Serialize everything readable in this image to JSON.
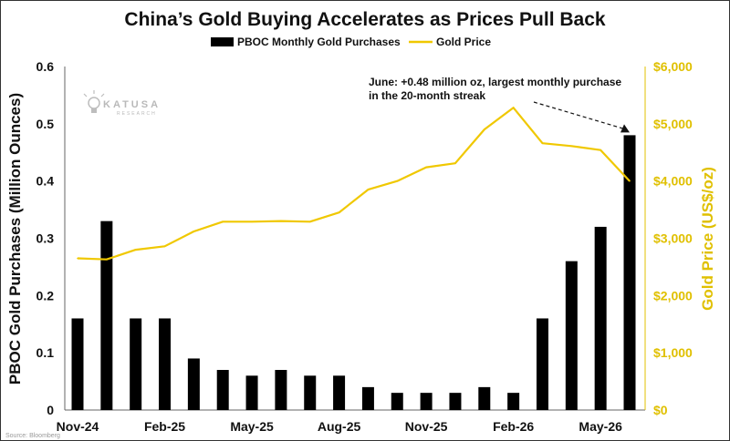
{
  "chart_data": {
    "type": "bar+line",
    "title": "China’s Gold Buying Accelerates as Prices Pull Back",
    "legend": [
      "PBOC Monthly Gold Purchases",
      "Gold Price"
    ],
    "legend_position": "top-center",
    "ylabel_left": "PBOC Gold Purchases (Million Ounces)",
    "ylabel_right": "Gold Price (US$/oz)",
    "ylim_left": [
      0,
      0.6
    ],
    "ylim_right": [
      0,
      6000
    ],
    "yticks_left": [
      "0",
      "0.1",
      "0.2",
      "0.3",
      "0.4",
      "0.5",
      "0.6"
    ],
    "yticks_right": [
      "$0",
      "$1,000",
      "$2,000",
      "$3,000",
      "$4,000",
      "$5,000",
      "$6,000"
    ],
    "x_tick_labels": [
      "Nov-24",
      "Feb-25",
      "May-25",
      "Aug-25",
      "Nov-25",
      "Feb-26",
      "May-26"
    ],
    "x_tick_indices": [
      0,
      3,
      6,
      9,
      12,
      15,
      18
    ],
    "series": [
      {
        "name": "PBOC Monthly Gold Purchases",
        "kind": "bar",
        "axis": "left",
        "color": "#000000",
        "values": [
          0.16,
          0.33,
          0.16,
          0.16,
          0.09,
          0.07,
          0.06,
          0.07,
          0.06,
          0.06,
          0.04,
          0.03,
          0.03,
          0.03,
          0.04,
          0.03,
          0.16,
          0.26,
          0.32,
          0.48
        ]
      },
      {
        "name": "Gold Price",
        "kind": "line",
        "axis": "right",
        "color": "#f0c800",
        "values": [
          2650,
          2630,
          2800,
          2860,
          3120,
          3290,
          3290,
          3300,
          3290,
          3450,
          3850,
          4000,
          4240,
          4310,
          4900,
          5280,
          4660,
          4610,
          4540,
          4000
        ]
      }
    ],
    "annotation": {
      "lines": [
        "June: +0.48 million oz, largest monthly purchase",
        "in the 20-month streak"
      ],
      "target_index": 19
    },
    "logo": {
      "text": "KATUSA",
      "subtext": "RESEARCH"
    },
    "source": "Source: Bloomberg",
    "grid": false
  }
}
